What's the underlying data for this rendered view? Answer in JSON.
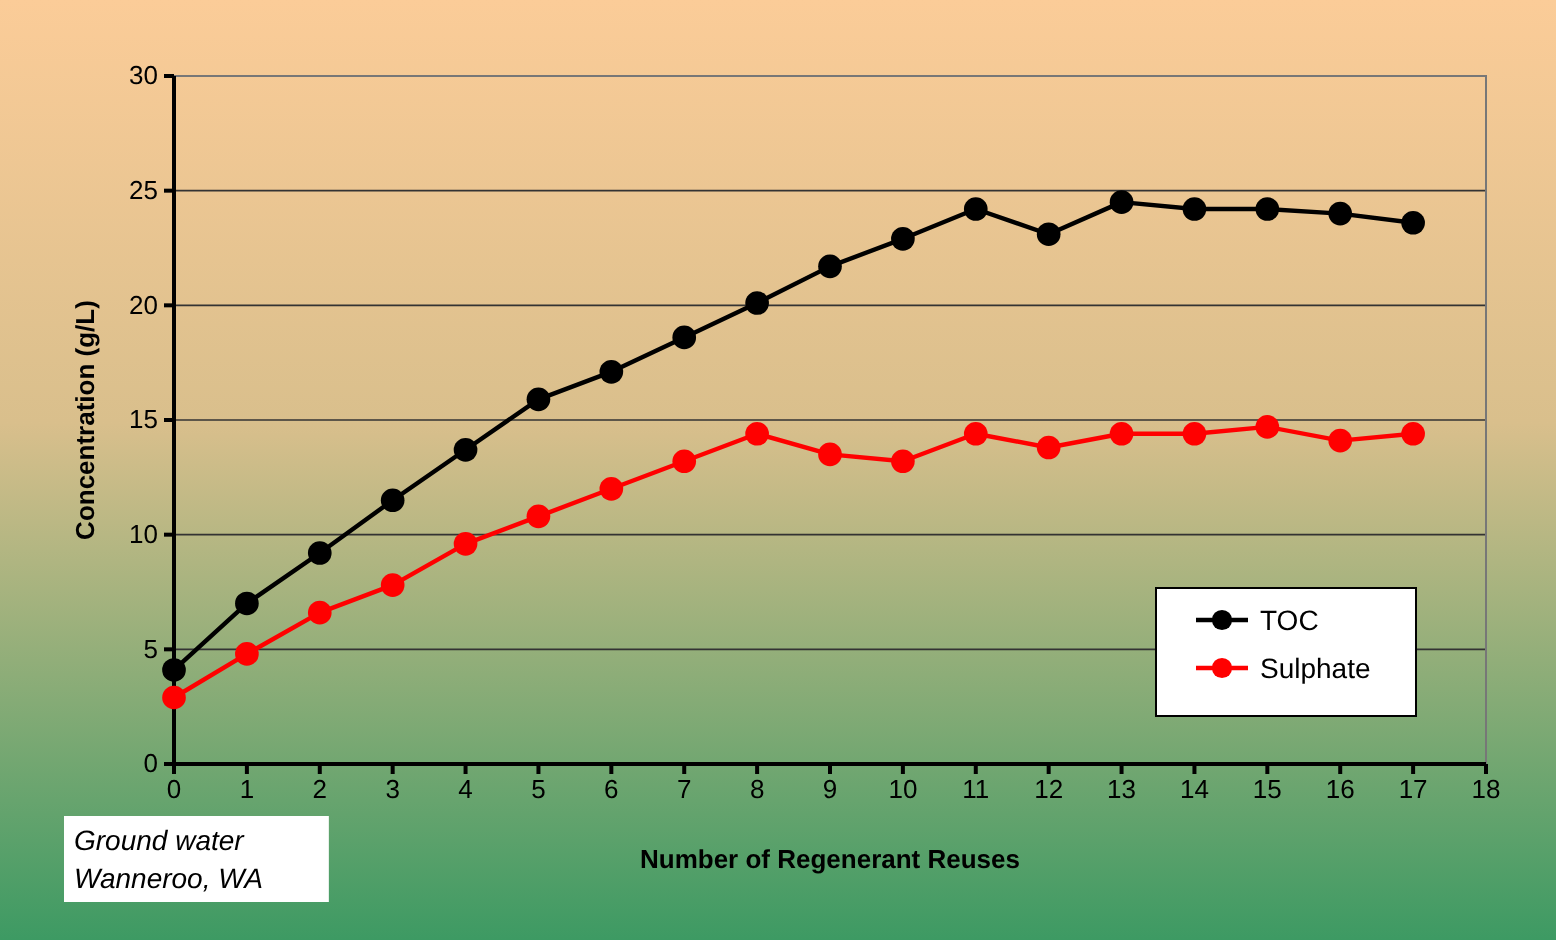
{
  "chart_data": {
    "type": "line",
    "xlabel": "Number of Regenerant Reuses",
    "ylabel": "Concentration (g/L)",
    "x": [
      0,
      1,
      2,
      3,
      4,
      5,
      6,
      7,
      8,
      9,
      10,
      11,
      12,
      13,
      14,
      15,
      16,
      17
    ],
    "series": [
      {
        "name": "TOC",
        "color": "#000000",
        "values": [
          4.1,
          7.0,
          9.2,
          11.5,
          13.7,
          15.9,
          17.1,
          18.6,
          20.1,
          21.7,
          22.9,
          24.2,
          23.1,
          24.5,
          24.2,
          24.2,
          24.0,
          23.6
        ]
      },
      {
        "name": "Sulphate",
        "color": "#ff0000",
        "values": [
          2.9,
          4.8,
          6.6,
          7.8,
          9.6,
          10.8,
          12.0,
          13.2,
          14.4,
          13.5,
          13.2,
          14.4,
          13.8,
          14.4,
          14.4,
          14.7,
          14.1,
          14.4
        ]
      }
    ],
    "xlim": [
      0,
      18
    ],
    "xticks": [
      0,
      1,
      2,
      3,
      4,
      5,
      6,
      7,
      8,
      9,
      10,
      11,
      12,
      13,
      14,
      15,
      16,
      17,
      18
    ],
    "ylim": [
      0,
      30
    ],
    "yticks": [
      0,
      5,
      10,
      15,
      20,
      25,
      30
    ],
    "grid": "y",
    "legend": "bottom right",
    "marker": "circle",
    "line_style": "solid",
    "annotations": [
      "Ground water\nWanneroo, WA"
    ]
  }
}
